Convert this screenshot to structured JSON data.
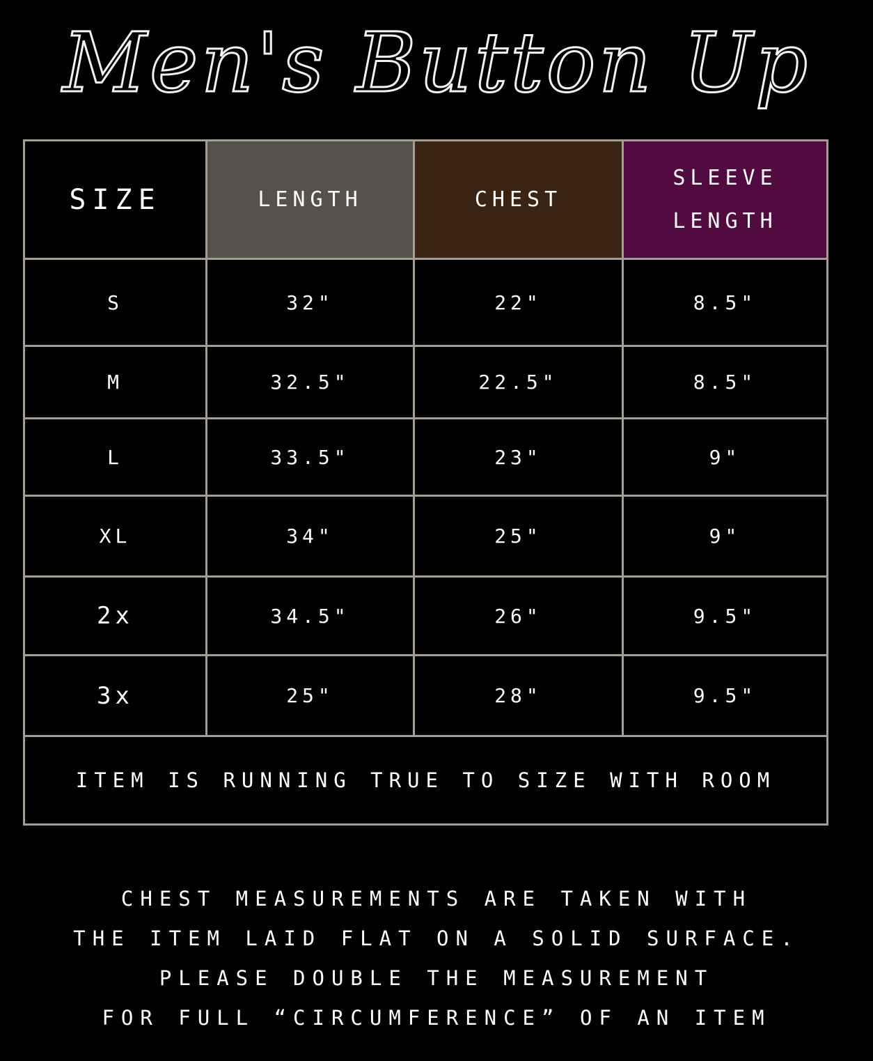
{
  "title": "Men's Button Up",
  "colors": {
    "length_header": "#55524d",
    "chest_header": "#3a2413",
    "sleeve_header": "#510b40",
    "border": "#a39d94"
  },
  "headers": [
    "SIZE",
    "LENGTH",
    "CHEST",
    "SLEEVE LENGTH"
  ],
  "rows": [
    [
      "S",
      "32\"",
      "22\"",
      "8.5\""
    ],
    [
      "M",
      "32.5\"",
      "22.5\"",
      "8.5\""
    ],
    [
      "L",
      "33.5\"",
      "23\"",
      "9\""
    ],
    [
      "XL",
      "34\"",
      "25\"",
      "9\""
    ],
    [
      "2x",
      "34.5\"",
      "26\"",
      "9.5\""
    ],
    [
      "3x",
      "25\"",
      "28\"",
      "9.5\""
    ]
  ],
  "note": "ITEM IS RUNNING TRUE TO SIZE WITH ROOM",
  "footer": [
    "CHEST MEASUREMENTS ARE TAKEN WITH",
    "THE ITEM LAID FLAT ON A SOLID SURFACE.",
    "PLEASE DOUBLE THE MEASUREMENT",
    "FOR FULL “CIRCUMFERENCE” OF AN ITEM"
  ]
}
